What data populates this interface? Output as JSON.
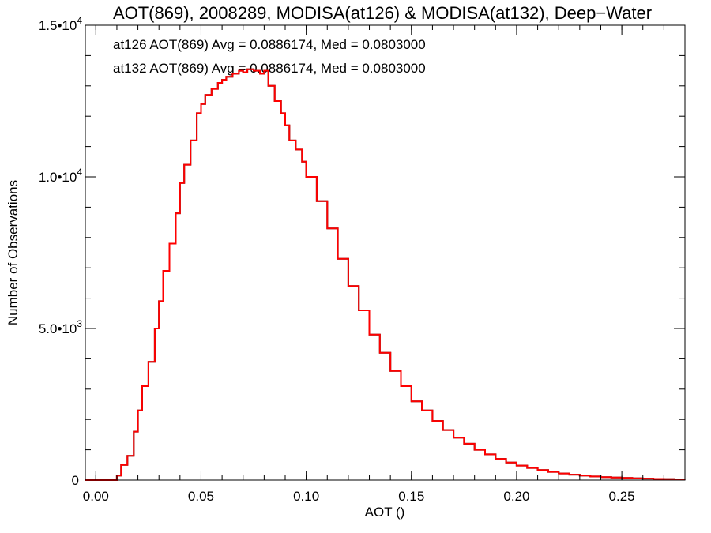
{
  "chart_data": {
    "type": "line",
    "style": "step-histogram",
    "title": "AOT(869), 2008289, MODISA(at126) & MODISA(at132), Deep−Water",
    "xlabel": "AOT ()",
    "ylabel": "Number of Observations",
    "xlim": [
      -0.005,
      0.28
    ],
    "ylim": [
      0,
      15000
    ],
    "x_ticks": [
      {
        "value": 0.0,
        "label": "0.00"
      },
      {
        "value": 0.05,
        "label": "0.05"
      },
      {
        "value": 0.1,
        "label": "0.10"
      },
      {
        "value": 0.15,
        "label": "0.15"
      },
      {
        "value": 0.2,
        "label": "0.20"
      },
      {
        "value": 0.25,
        "label": "0.25"
      }
    ],
    "y_ticks": [
      {
        "value": 0,
        "label": "0",
        "exp": ""
      },
      {
        "value": 5000,
        "label": "5.0•10",
        "exp": "3"
      },
      {
        "value": 10000,
        "label": "1.0•10",
        "exp": "4"
      },
      {
        "value": 15000,
        "label": "1.5•10",
        "exp": "4"
      }
    ],
    "grid": false,
    "annotations": [
      {
        "text": "at126 AOT(869) Avg = 0.0886174, Med = 0.0803000",
        "color": "#000000"
      },
      {
        "text": "at132 AOT(869) Avg = 0.0886174, Med = 0.0803000",
        "color": "#ff0000"
      }
    ],
    "series": [
      {
        "color": "#000000",
        "x": [
          -0.005,
          0.0,
          0.005,
          0.008,
          0.01,
          0.012,
          0.015,
          0.018,
          0.02,
          0.022,
          0.025,
          0.028,
          0.03,
          0.032,
          0.035,
          0.038,
          0.04,
          0.042,
          0.045,
          0.048,
          0.05,
          0.052,
          0.055,
          0.058,
          0.06,
          0.062,
          0.065,
          0.068,
          0.07,
          0.072,
          0.075,
          0.078,
          0.08,
          0.082,
          0.085,
          0.088,
          0.09,
          0.092,
          0.095,
          0.098,
          0.1,
          0.105,
          0.11,
          0.115,
          0.12,
          0.125,
          0.13,
          0.135,
          0.14,
          0.145,
          0.15,
          0.155,
          0.16,
          0.165,
          0.17,
          0.175,
          0.18,
          0.185,
          0.19,
          0.195,
          0.2,
          0.205,
          0.21,
          0.215,
          0.22,
          0.225,
          0.23,
          0.235,
          0.24,
          0.245,
          0.25,
          0.255,
          0.26,
          0.265,
          0.27,
          0.275,
          0.28
        ],
        "y": [
          0,
          0,
          0,
          0,
          150,
          500,
          800,
          1600,
          2300,
          3100,
          3900,
          5000,
          5900,
          6900,
          7800,
          8800,
          9800,
          10400,
          11200,
          12100,
          12400,
          12700,
          12900,
          13100,
          13200,
          13300,
          13400,
          13500,
          13450,
          13550,
          13500,
          13400,
          13500,
          13000,
          12500,
          12100,
          11700,
          11200,
          10900,
          10500,
          10000,
          9200,
          8300,
          7300,
          6400,
          5600,
          4800,
          4200,
          3600,
          3100,
          2600,
          2300,
          1950,
          1650,
          1400,
          1200,
          1000,
          850,
          700,
          580,
          480,
          400,
          330,
          270,
          220,
          180,
          150,
          120,
          100,
          85,
          70,
          60,
          50,
          40,
          30,
          25,
          20
        ]
      },
      {
        "color": "#ff0000",
        "x": [
          -0.005,
          0.0,
          0.005,
          0.008,
          0.01,
          0.012,
          0.015,
          0.018,
          0.02,
          0.022,
          0.025,
          0.028,
          0.03,
          0.032,
          0.035,
          0.038,
          0.04,
          0.042,
          0.045,
          0.048,
          0.05,
          0.052,
          0.055,
          0.058,
          0.06,
          0.062,
          0.065,
          0.068,
          0.07,
          0.072,
          0.075,
          0.078,
          0.08,
          0.082,
          0.085,
          0.088,
          0.09,
          0.092,
          0.095,
          0.098,
          0.1,
          0.105,
          0.11,
          0.115,
          0.12,
          0.125,
          0.13,
          0.135,
          0.14,
          0.145,
          0.15,
          0.155,
          0.16,
          0.165,
          0.17,
          0.175,
          0.18,
          0.185,
          0.19,
          0.195,
          0.2,
          0.205,
          0.21,
          0.215,
          0.22,
          0.225,
          0.23,
          0.235,
          0.24,
          0.245,
          0.25,
          0.255,
          0.26,
          0.265,
          0.27,
          0.275,
          0.28
        ],
        "y": [
          0,
          0,
          0,
          0,
          150,
          500,
          800,
          1600,
          2300,
          3100,
          3900,
          5000,
          5900,
          6900,
          7800,
          8800,
          9800,
          10400,
          11200,
          12100,
          12400,
          12700,
          12900,
          13100,
          13200,
          13300,
          13400,
          13500,
          13450,
          13550,
          13500,
          13400,
          13500,
          13000,
          12500,
          12100,
          11700,
          11200,
          10900,
          10500,
          10000,
          9200,
          8300,
          7300,
          6400,
          5600,
          4800,
          4200,
          3600,
          3100,
          2600,
          2300,
          1950,
          1650,
          1400,
          1200,
          1000,
          850,
          700,
          580,
          480,
          400,
          330,
          270,
          220,
          180,
          150,
          120,
          100,
          85,
          70,
          60,
          50,
          40,
          30,
          25,
          20
        ]
      }
    ]
  }
}
